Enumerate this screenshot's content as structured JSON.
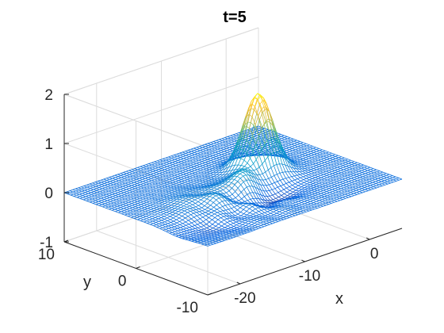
{
  "chart_data": {
    "type": "surface-mesh",
    "title": "t=5",
    "xlabel": "x",
    "ylabel": "y",
    "zlabel": "",
    "xlim": [
      -25,
      5
    ],
    "ylim": [
      -10,
      10
    ],
    "zlim": [
      -1,
      2
    ],
    "xticks": [
      -20,
      -10,
      0
    ],
    "xtick_labels": [
      "-20",
      "-10",
      "0"
    ],
    "yticks": [
      -10,
      0,
      10
    ],
    "ytick_labels": [
      "-10",
      "0",
      "10"
    ],
    "zticks": [
      -1,
      0,
      1,
      2
    ],
    "ztick_labels": [
      "-1",
      "0",
      "1",
      "2"
    ],
    "grid": true,
    "colormap": "parula",
    "mesh_resolution": {
      "x_lines": 70,
      "y_lines": 46
    },
    "surface_components": [
      {
        "name": "main peak",
        "center_x": -5,
        "center_y": 1,
        "amplitude": 1.6,
        "sigma_x": 1.8,
        "sigma_y": 1.4
      },
      {
        "name": "side bump",
        "center_x": -10,
        "center_y": -1.5,
        "amplitude": 0.35,
        "sigma_x": 1.6,
        "sigma_y": 1.4
      },
      {
        "name": "ripple",
        "center_x": -16,
        "center_y": -3,
        "amplitude": 0.2,
        "sigma_x": 3.5,
        "sigma_y": 3
      },
      {
        "name": "trough",
        "center_x": -9,
        "center_y": -4,
        "amplitude": -0.22,
        "sigma_x": 3,
        "sigma_y": 1.2
      },
      {
        "name": "trough 2",
        "center_x": -19,
        "center_y": -6,
        "amplitude": -0.15,
        "sigma_x": 4,
        "sigma_y": 2
      }
    ],
    "colors": {
      "axis": "#262626",
      "grid": "#dcdcdc",
      "background": "#ffffff"
    }
  }
}
